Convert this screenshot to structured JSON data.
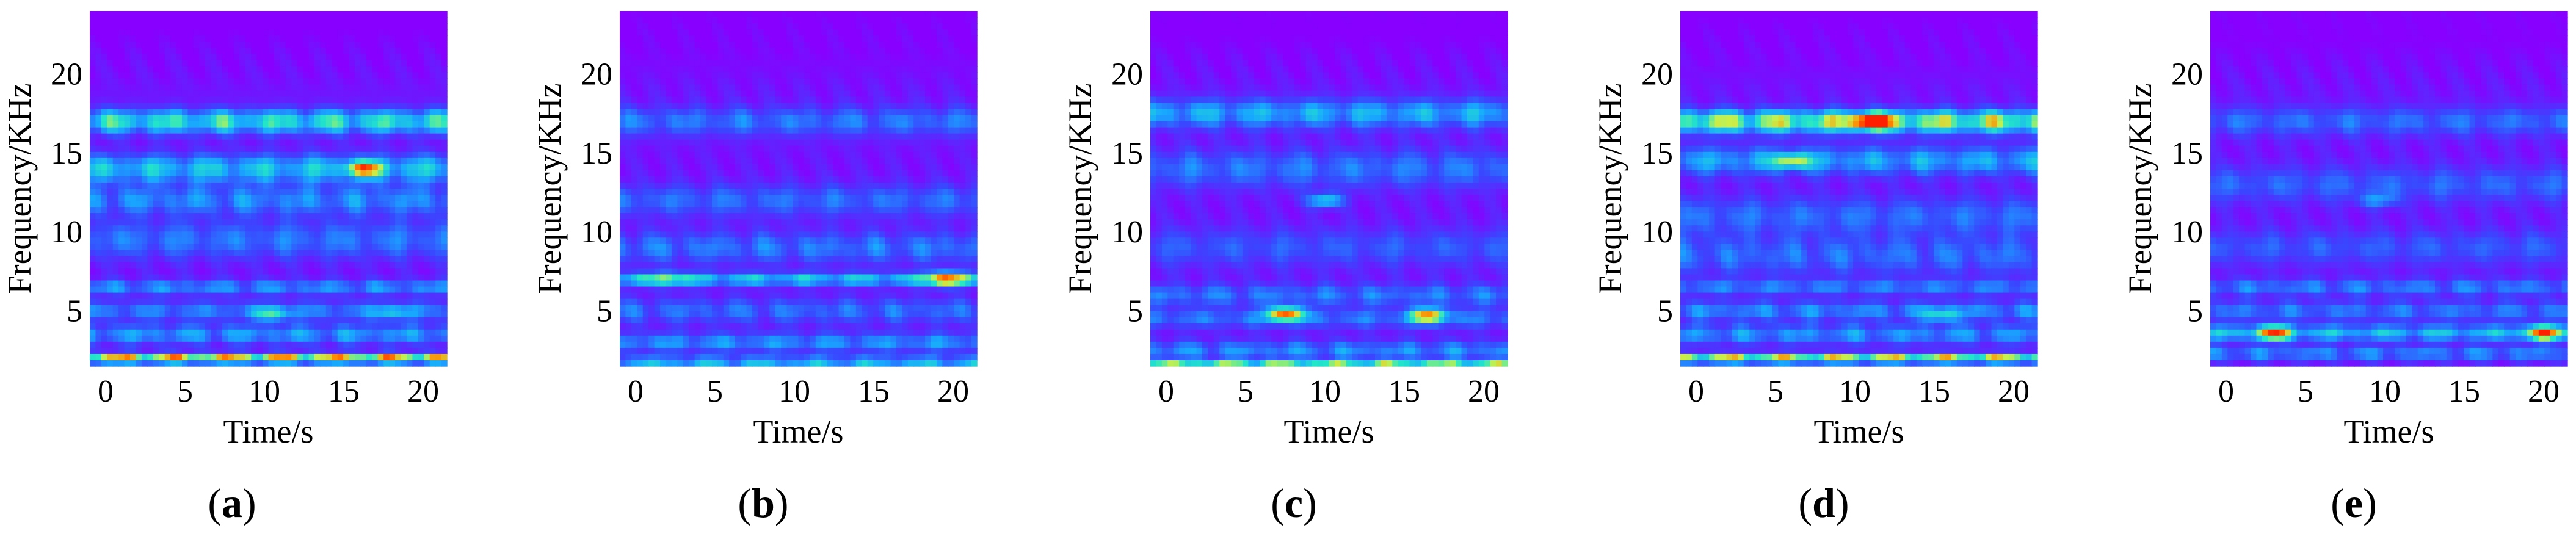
{
  "chart_data": [
    {
      "type": "heatmap",
      "panel_label": "a",
      "xlabel": "Time/s",
      "ylabel": "Frequency/KHz",
      "xlim": [
        -1,
        21.5
      ],
      "ylim": [
        1.5,
        24
      ],
      "xticks": [
        "0",
        "5",
        "10",
        "15",
        "20"
      ],
      "yticks": [
        "5",
        "10",
        "15",
        "20"
      ],
      "colormap": "rainbow",
      "colormap_stops": [
        "#8800ff",
        "#3a46ff",
        "#18a7ff",
        "#23e6c8",
        "#c9f04a",
        "#ff8a00",
        "#ff1e00"
      ],
      "bands": [
        {
          "freq": 17,
          "intensity": 0.52,
          "width": 0.75
        },
        {
          "freq": 14,
          "intensity": 0.42,
          "width": 0.9
        },
        {
          "freq": 12,
          "intensity": 0.28,
          "width": 0.9
        },
        {
          "freq": 9.5,
          "intensity": 0.24,
          "width": 1.2
        },
        {
          "freq": 6.5,
          "intensity": 0.3,
          "width": 0.45
        },
        {
          "freq": 5,
          "intensity": 0.26,
          "width": 0.6
        },
        {
          "freq": 3.5,
          "intensity": 0.32,
          "width": 0.6
        },
        {
          "freq": 2,
          "intensity": 0.86,
          "width": 0.3
        }
      ],
      "hotspots": [
        {
          "t": 16.3,
          "freq": 14,
          "intensity": 0.55
        },
        {
          "t": 10.5,
          "freq": 4.8,
          "intensity": 0.32
        },
        {
          "t": 18,
          "freq": 4.9,
          "intensity": 0.22
        }
      ]
    },
    {
      "type": "heatmap",
      "panel_label": "b",
      "xlabel": "Time/s",
      "ylabel": "Frequency/KHz",
      "xlim": [
        -1,
        21.5
      ],
      "ylim": [
        1.5,
        24
      ],
      "xticks": [
        "0",
        "5",
        "10",
        "15",
        "20"
      ],
      "yticks": [
        "5",
        "10",
        "15",
        "20"
      ],
      "colormap": "rainbow",
      "colormap_stops": [
        "#8800ff",
        "#3a46ff",
        "#18a7ff",
        "#23e6c8",
        "#c9f04a",
        "#ff8a00",
        "#ff1e00"
      ],
      "bands": [
        {
          "freq": 17,
          "intensity": 0.24,
          "width": 0.9
        },
        {
          "freq": 12,
          "intensity": 0.22,
          "width": 1.0
        },
        {
          "freq": 9,
          "intensity": 0.24,
          "width": 1.0
        },
        {
          "freq": 7,
          "intensity": 0.44,
          "width": 0.4
        },
        {
          "freq": 5,
          "intensity": 0.22,
          "width": 0.8
        },
        {
          "freq": 3,
          "intensity": 0.3,
          "width": 0.6
        },
        {
          "freq": 1.8,
          "intensity": 0.42,
          "width": 0.3
        }
      ],
      "hotspots": [
        {
          "t": 19.5,
          "freq": 7,
          "intensity": 0.62
        },
        {
          "t": 2,
          "freq": 7,
          "intensity": 0.3
        }
      ]
    },
    {
      "type": "heatmap",
      "panel_label": "c",
      "xlabel": "Time/s",
      "ylabel": "Frequency/KHz",
      "xlim": [
        -1,
        21.5
      ],
      "ylim": [
        1.5,
        24
      ],
      "xticks": [
        "0",
        "5",
        "10",
        "15",
        "20"
      ],
      "yticks": [
        "5",
        "10",
        "15",
        "20"
      ],
      "colormap": "rainbow",
      "colormap_stops": [
        "#8800ff",
        "#3a46ff",
        "#18a7ff",
        "#23e6c8",
        "#c9f04a",
        "#ff8a00",
        "#ff1e00"
      ],
      "bands": [
        {
          "freq": 17.5,
          "intensity": 0.36,
          "width": 0.9
        },
        {
          "freq": 14,
          "intensity": 0.24,
          "width": 1.2
        },
        {
          "freq": 9,
          "intensity": 0.18,
          "width": 1.2
        },
        {
          "freq": 6,
          "intensity": 0.24,
          "width": 0.7
        },
        {
          "freq": 4.5,
          "intensity": 0.24,
          "width": 0.6
        },
        {
          "freq": 2.5,
          "intensity": 0.28,
          "width": 0.6
        },
        {
          "freq": 1.7,
          "intensity": 0.55,
          "width": 0.22
        }
      ],
      "hotspots": [
        {
          "t": 7.5,
          "freq": 4.8,
          "intensity": 0.75
        },
        {
          "t": 16.5,
          "freq": 4.7,
          "intensity": 0.65
        },
        {
          "t": 10,
          "freq": 12,
          "intensity": 0.4
        }
      ]
    },
    {
      "type": "heatmap",
      "panel_label": "d",
      "xlabel": "Time/s",
      "ylabel": "Frequency/KHz",
      "xlim": [
        -1,
        21.5
      ],
      "ylim": [
        1.5,
        24
      ],
      "xticks": [
        "0",
        "5",
        "10",
        "15",
        "20"
      ],
      "yticks": [
        "5",
        "10",
        "15",
        "20"
      ],
      "colormap": "rainbow",
      "colormap_stops": [
        "#8800ff",
        "#3a46ff",
        "#18a7ff",
        "#23e6c8",
        "#c9f04a",
        "#ff8a00",
        "#ff1e00"
      ],
      "bands": [
        {
          "freq": 17,
          "intensity": 0.7,
          "width": 0.7
        },
        {
          "freq": 14.5,
          "intensity": 0.34,
          "width": 0.9
        },
        {
          "freq": 11,
          "intensity": 0.22,
          "width": 1.2
        },
        {
          "freq": 8.5,
          "intensity": 0.22,
          "width": 1.2
        },
        {
          "freq": 6.5,
          "intensity": 0.26,
          "width": 0.45
        },
        {
          "freq": 5,
          "intensity": 0.28,
          "width": 0.6
        },
        {
          "freq": 3.5,
          "intensity": 0.3,
          "width": 0.6
        },
        {
          "freq": 2,
          "intensity": 0.76,
          "width": 0.3
        }
      ],
      "hotspots": [
        {
          "t": 11,
          "freq": 17,
          "intensity": 0.86
        },
        {
          "t": 6,
          "freq": 14.5,
          "intensity": 0.45
        },
        {
          "t": 15.5,
          "freq": 4.7,
          "intensity": 0.3
        }
      ]
    },
    {
      "type": "heatmap",
      "panel_label": "e",
      "xlabel": "Time/s",
      "ylabel": "Frequency/KHz",
      "xlim": [
        -1,
        21.5
      ],
      "ylim": [
        1.5,
        24
      ],
      "xticks": [
        "0",
        "5",
        "10",
        "15",
        "20"
      ],
      "yticks": [
        "5",
        "10",
        "15",
        "20"
      ],
      "colormap": "rainbow",
      "colormap_stops": [
        "#8800ff",
        "#3a46ff",
        "#18a7ff",
        "#23e6c8",
        "#c9f04a",
        "#ff8a00",
        "#ff1e00"
      ],
      "bands": [
        {
          "freq": 17,
          "intensity": 0.22,
          "width": 0.9
        },
        {
          "freq": 13,
          "intensity": 0.2,
          "width": 1.1
        },
        {
          "freq": 9,
          "intensity": 0.18,
          "width": 1.1
        },
        {
          "freq": 6.5,
          "intensity": 0.26,
          "width": 0.5
        },
        {
          "freq": 5,
          "intensity": 0.24,
          "width": 0.6
        },
        {
          "freq": 3.6,
          "intensity": 0.4,
          "width": 0.5
        },
        {
          "freq": 2.3,
          "intensity": 0.28,
          "width": 0.45
        }
      ],
      "hotspots": [
        {
          "t": 3,
          "freq": 3.6,
          "intensity": 0.58
        },
        {
          "t": 20,
          "freq": 3.6,
          "intensity": 0.58
        },
        {
          "t": 9.5,
          "freq": 12,
          "intensity": 0.22
        }
      ]
    }
  ]
}
